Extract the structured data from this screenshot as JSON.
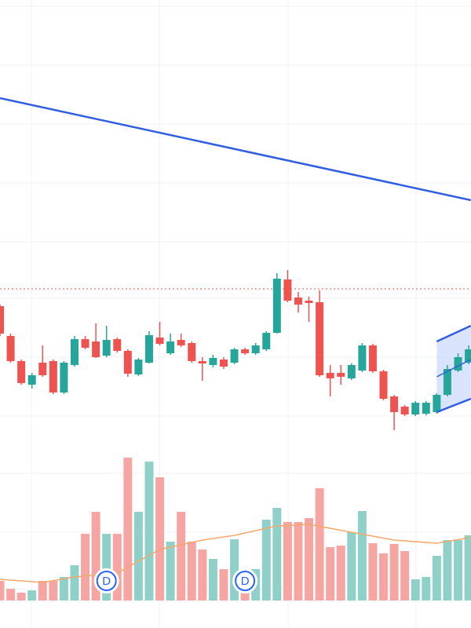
{
  "chart_data": {
    "type": "candlestick",
    "ylim": [
      0,
      800
    ],
    "volume_ylim": [
      0,
      765
    ],
    "up_color": "#26a69a",
    "down_color": "#ef5350",
    "volume_up_color": "#8fd0c8",
    "volume_down_color": "#f5a5a2",
    "open": [
      410,
      372,
      340,
      310,
      338,
      340,
      300,
      335,
      368,
      365,
      347,
      368,
      353,
      323,
      338,
      370,
      350,
      367,
      363,
      340,
      335,
      342,
      338,
      355,
      350,
      355,
      376,
      444,
      421,
      417,
      415,
      325,
      325,
      318,
      328,
      360,
      327,
      295,
      282,
      272,
      273,
      275,
      297,
      328,
      338
    ],
    "high": [
      412,
      375,
      342,
      325,
      360,
      342,
      340,
      372,
      372,
      388,
      385,
      370,
      355,
      344,
      378,
      390,
      375,
      375,
      365,
      345,
      348,
      345,
      357,
      357,
      363,
      378,
      452,
      456,
      428,
      422,
      430,
      335,
      335,
      337,
      363,
      362,
      329,
      297,
      284,
      289,
      289,
      299,
      335,
      350,
      360
    ],
    "low": [
      372,
      338,
      310,
      305,
      320,
      298,
      298,
      333,
      355,
      344,
      345,
      351,
      320,
      321,
      337,
      360,
      348,
      358,
      338,
      315,
      332,
      330,
      336,
      348,
      348,
      353,
      375,
      415,
      402,
      390,
      320,
      295,
      310,
      316,
      326,
      325,
      290,
      252,
      270,
      270,
      271,
      273,
      295,
      326,
      336
    ],
    "close": [
      375,
      340,
      312,
      322,
      322,
      300,
      338,
      368,
      357,
      345,
      367,
      353,
      324,
      342,
      373,
      362,
      365,
      360,
      340,
      337,
      344,
      333,
      355,
      350,
      360,
      376,
      445,
      417,
      412,
      414,
      322,
      318,
      320,
      335,
      360,
      327,
      292,
      275,
      272,
      287,
      287,
      297,
      330,
      345,
      355
    ],
    "volume": [
      25,
      15,
      10,
      13,
      25,
      25,
      30,
      45,
      85,
      113,
      85,
      85,
      182,
      113,
      177,
      157,
      75,
      113,
      75,
      65,
      53,
      40,
      78,
      40,
      40,
      103,
      118,
      100,
      100,
      105,
      143,
      68,
      70,
      87,
      114,
      73,
      60,
      72,
      63,
      27,
      30,
      57,
      77,
      77,
      83
    ],
    "volume_ma": {
      "color": "#f5a86b",
      "x": [
        0,
        4,
        7,
        11,
        15,
        19,
        22,
        26,
        29,
        33,
        37,
        41,
        44
      ],
      "values": [
        27,
        23,
        30,
        35,
        65,
        77,
        83,
        95,
        97,
        87,
        77,
        73,
        80
      ]
    },
    "price_line": {
      "value": 432,
      "color": "#ef5350"
    },
    "trend_line": {
      "color": "#2f5fe0",
      "x": [
        0,
        44.2
      ],
      "values": [
        675,
        545
      ]
    },
    "channel": {
      "color": "#2f5fe0",
      "fill": "#c9d8fb",
      "upper": {
        "x": [
          41,
          44.2
        ],
        "values": [
          365,
          385
        ]
      },
      "middle": {
        "x": [
          41,
          44.2
        ],
        "values": [
          320,
          342
        ]
      },
      "lower": {
        "x": [
          41,
          44.2
        ],
        "values": [
          275,
          292
        ]
      }
    },
    "dividends": [
      {
        "index": 10,
        "label": "D"
      },
      {
        "index": 23,
        "label": "D"
      }
    ]
  }
}
